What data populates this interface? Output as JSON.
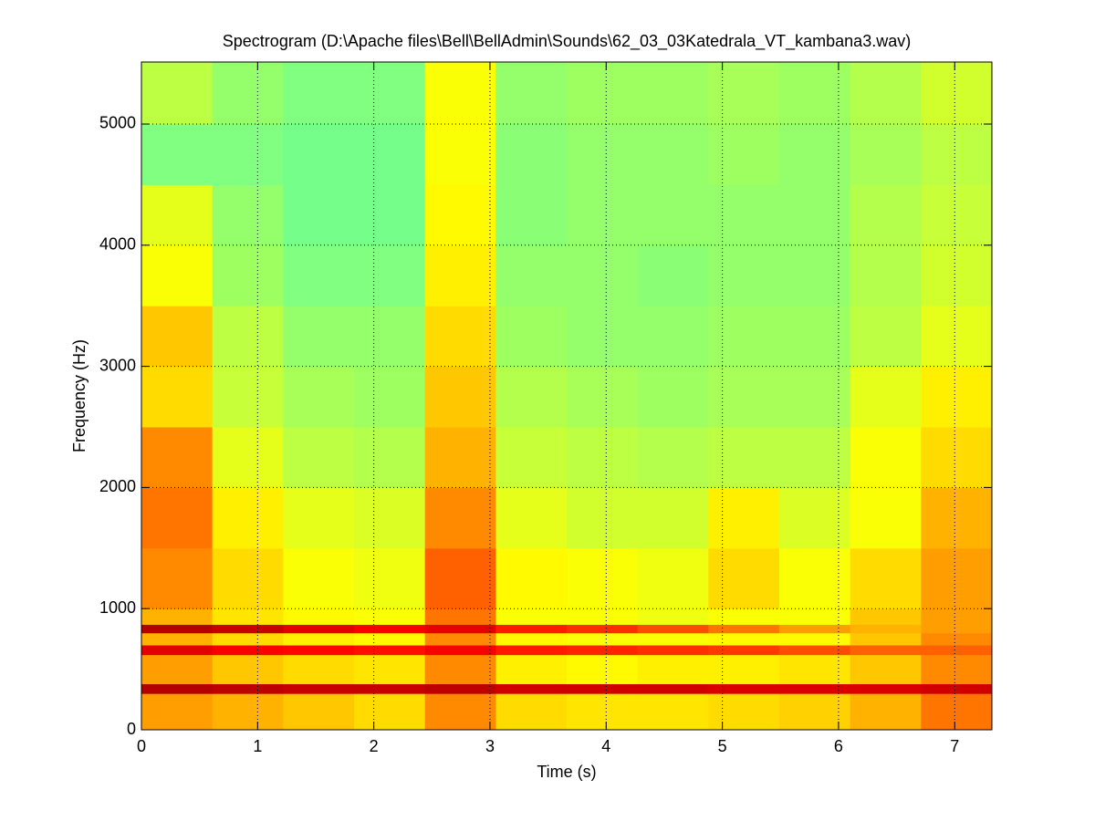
{
  "chart_data": {
    "type": "heatmap",
    "title": "Spectrogram (D:\\Apache files\\Bell\\BellAdmin\\Sounds\\62_03_03Katedrala_VT_kambana3.wav)",
    "xlabel": "Time (s)",
    "ylabel": "Frequency (Hz)",
    "colormap": "jet",
    "clim": [
      0,
      1
    ],
    "grid": true,
    "xlim": [
      0,
      7.32
    ],
    "ylim": [
      0,
      5512
    ],
    "xticks": [
      0,
      1,
      2,
      3,
      4,
      5,
      6,
      7
    ],
    "yticks": [
      0,
      1000,
      2000,
      3000,
      4000,
      5000
    ],
    "x_edges": [
      0,
      0.61,
      1.22,
      1.83,
      2.44,
      3.05,
      3.66,
      4.27,
      4.88,
      5.49,
      6.1,
      6.71,
      7.32
    ],
    "y_edges": [
      0,
      300,
      380,
      620,
      700,
      800,
      870,
      1000,
      1500,
      2000,
      2500,
      3000,
      3500,
      4000,
      4500,
      5000,
      5512
    ],
    "z": [
      [
        0.72,
        0.7,
        0.68,
        0.66,
        0.74,
        0.66,
        0.65,
        0.65,
        0.66,
        0.67,
        0.7,
        0.76
      ],
      [
        0.95,
        0.94,
        0.93,
        0.93,
        0.94,
        0.92,
        0.92,
        0.92,
        0.91,
        0.91,
        0.91,
        0.92
      ],
      [
        0.72,
        0.68,
        0.66,
        0.65,
        0.74,
        0.64,
        0.63,
        0.64,
        0.64,
        0.65,
        0.68,
        0.74
      ],
      [
        0.9,
        0.88,
        0.87,
        0.86,
        0.88,
        0.85,
        0.84,
        0.83,
        0.82,
        0.8,
        0.78,
        0.78
      ],
      [
        0.7,
        0.66,
        0.64,
        0.63,
        0.74,
        0.63,
        0.62,
        0.62,
        0.63,
        0.63,
        0.68,
        0.74
      ],
      [
        0.95,
        0.93,
        0.9,
        0.88,
        0.9,
        0.85,
        0.83,
        0.8,
        0.76,
        0.72,
        0.7,
        0.72
      ],
      [
        0.7,
        0.65,
        0.63,
        0.62,
        0.76,
        0.62,
        0.62,
        0.61,
        0.62,
        0.62,
        0.68,
        0.72
      ],
      [
        0.74,
        0.66,
        0.62,
        0.61,
        0.78,
        0.63,
        0.62,
        0.61,
        0.66,
        0.62,
        0.66,
        0.72
      ],
      [
        0.76,
        0.64,
        0.6,
        0.59,
        0.74,
        0.6,
        0.58,
        0.58,
        0.64,
        0.59,
        0.62,
        0.7
      ],
      [
        0.74,
        0.6,
        0.56,
        0.55,
        0.7,
        0.57,
        0.56,
        0.55,
        0.56,
        0.56,
        0.62,
        0.66
      ],
      [
        0.66,
        0.57,
        0.54,
        0.53,
        0.68,
        0.55,
        0.54,
        0.53,
        0.54,
        0.54,
        0.6,
        0.64
      ],
      [
        0.68,
        0.56,
        0.52,
        0.52,
        0.66,
        0.53,
        0.52,
        0.52,
        0.53,
        0.53,
        0.56,
        0.6
      ],
      [
        0.62,
        0.53,
        0.5,
        0.5,
        0.64,
        0.52,
        0.52,
        0.51,
        0.52,
        0.52,
        0.55,
        0.58
      ],
      [
        0.6,
        0.52,
        0.49,
        0.49,
        0.63,
        0.51,
        0.52,
        0.52,
        0.52,
        0.52,
        0.55,
        0.57
      ],
      [
        0.5,
        0.5,
        0.49,
        0.49,
        0.62,
        0.51,
        0.52,
        0.52,
        0.53,
        0.52,
        0.54,
        0.56
      ],
      [
        0.56,
        0.52,
        0.5,
        0.5,
        0.62,
        0.52,
        0.53,
        0.53,
        0.54,
        0.53,
        0.55,
        0.58
      ]
    ]
  }
}
